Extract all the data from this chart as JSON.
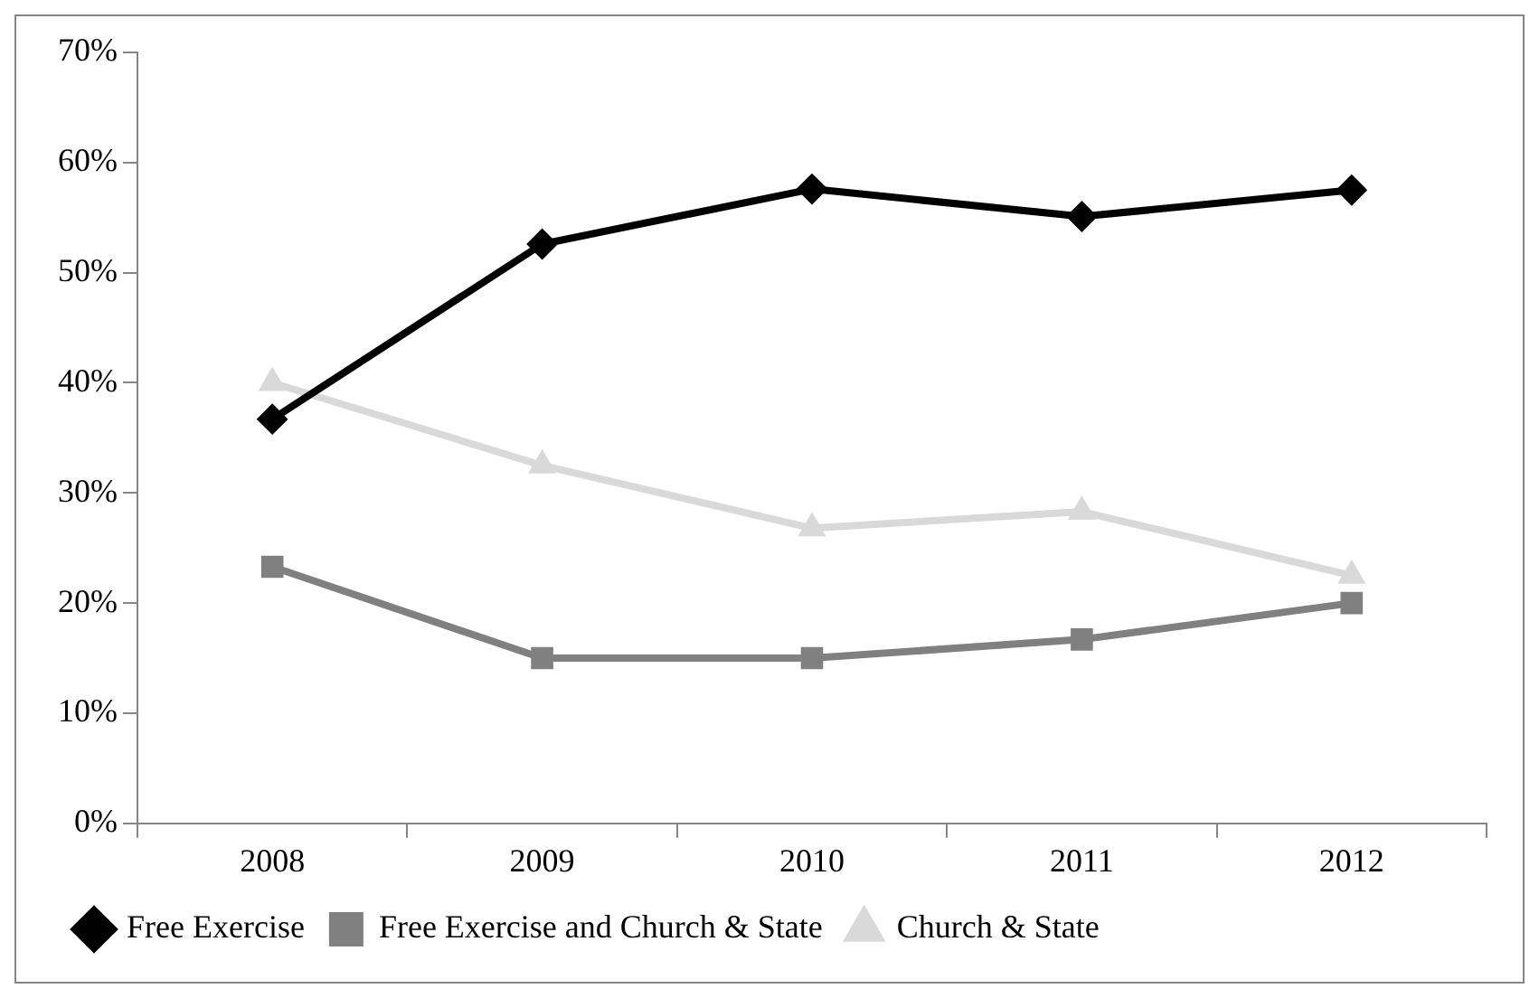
{
  "chart_data": {
    "type": "line",
    "categories": [
      "2008",
      "2009",
      "2010",
      "2011",
      "2012"
    ],
    "series": [
      {
        "name": "Free Exercise",
        "color": "#000000",
        "marker": "diamond",
        "values": [
          36.7,
          52.6,
          57.6,
          55.1,
          57.5
        ]
      },
      {
        "name": "Free Exercise and Church & State",
        "color": "#808080",
        "marker": "square",
        "values": [
          23.3,
          15,
          15,
          16.7,
          20
        ]
      },
      {
        "name": "Church & State",
        "color": "#d9d9d9",
        "marker": "triangle",
        "values": [
          40,
          32.5,
          26.8,
          28.3,
          22.5
        ]
      }
    ],
    "ylim": [
      0,
      70
    ],
    "yticks": [
      {
        "value": 0,
        "label": "0%"
      },
      {
        "value": 10,
        "label": "10%"
      },
      {
        "value": 20,
        "label": "20%"
      },
      {
        "value": 30,
        "label": "30%"
      },
      {
        "value": 40,
        "label": "40%"
      },
      {
        "value": 50,
        "label": "50%"
      },
      {
        "value": 60,
        "label": "60%"
      },
      {
        "value": 70,
        "label": "70%"
      }
    ],
    "grid": false,
    "legend": "bottom"
  }
}
